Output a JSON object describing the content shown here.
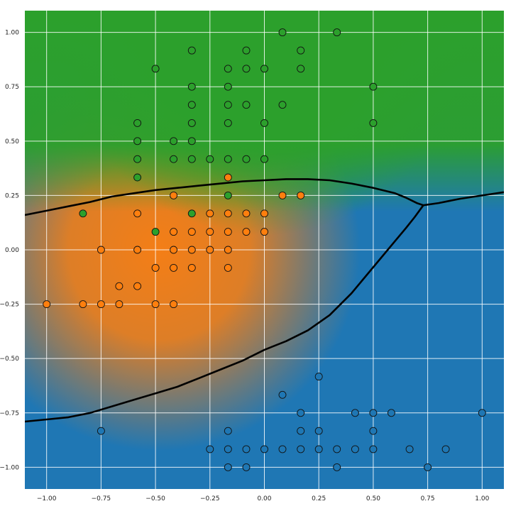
{
  "chart_data": {
    "type": "scatter",
    "title": "",
    "xlabel": "",
    "ylabel": "",
    "xlim": [
      -1.1,
      1.1
    ],
    "ylim": [
      -1.1,
      1.1
    ],
    "grid": true,
    "x_ticks": [
      "−1.00",
      "−0.75",
      "−0.50",
      "−0.25",
      "0.00",
      "0.25",
      "0.50",
      "0.75",
      "1.00"
    ],
    "x_tick_values": [
      -1,
      -0.75,
      -0.5,
      -0.25,
      0,
      0.25,
      0.5,
      0.75,
      1
    ],
    "y_ticks": [
      "1.00",
      "0.75",
      "0.50",
      "0.25",
      "0.00",
      "−0.25",
      "−0.50",
      "−0.75",
      "−1.00"
    ],
    "y_tick_values": [
      1,
      0.75,
      0.5,
      0.25,
      0,
      -0.25,
      -0.5,
      -0.75,
      -1
    ],
    "background": "decision region heatmap (green top, orange left-center, blue bottom-right)",
    "colors": {
      "green": "#2ca02c",
      "orange": "#ff7f0e",
      "blue": "#1f77b4",
      "boundary": "#000000",
      "grid": "#ffffff"
    },
    "series": [
      {
        "color": "#2ca02c",
        "points": [
          [
            0.083,
            1.0
          ],
          [
            0.333,
            1.0
          ],
          [
            -0.333,
            0.917
          ],
          [
            -0.083,
            0.917
          ],
          [
            0.167,
            0.917
          ],
          [
            -0.5,
            0.833
          ],
          [
            -0.167,
            0.833
          ],
          [
            -0.083,
            0.833
          ],
          [
            0.0,
            0.833
          ],
          [
            0.167,
            0.833
          ],
          [
            -0.333,
            0.75
          ],
          [
            -0.167,
            0.75
          ],
          [
            0.5,
            0.75
          ],
          [
            -0.333,
            0.667
          ],
          [
            -0.167,
            0.667
          ],
          [
            -0.083,
            0.667
          ],
          [
            0.083,
            0.667
          ],
          [
            -0.583,
            0.583
          ],
          [
            -0.333,
            0.583
          ],
          [
            -0.167,
            0.583
          ],
          [
            0.0,
            0.583
          ],
          [
            0.5,
            0.583
          ],
          [
            -0.583,
            0.5
          ],
          [
            -0.417,
            0.5
          ],
          [
            -0.333,
            0.5
          ],
          [
            -0.583,
            0.417
          ],
          [
            -0.417,
            0.417
          ],
          [
            -0.333,
            0.417
          ],
          [
            -0.25,
            0.417
          ],
          [
            -0.167,
            0.417
          ],
          [
            -0.083,
            0.417
          ],
          [
            0.0,
            0.417
          ],
          [
            -0.583,
            0.333
          ],
          [
            -0.167,
            0.25
          ],
          [
            -0.833,
            0.167
          ],
          [
            -0.333,
            0.167
          ],
          [
            -0.5,
            0.083
          ]
        ]
      },
      {
        "color": "#ff7f0e",
        "points": [
          [
            -0.167,
            0.333
          ],
          [
            -0.417,
            0.25
          ],
          [
            0.083,
            0.25
          ],
          [
            0.167,
            0.25
          ],
          [
            -0.583,
            0.167
          ],
          [
            -0.25,
            0.167
          ],
          [
            -0.167,
            0.167
          ],
          [
            -0.083,
            0.167
          ],
          [
            0.0,
            0.167
          ],
          [
            -0.417,
            0.083
          ],
          [
            -0.333,
            0.083
          ],
          [
            -0.25,
            0.083
          ],
          [
            -0.167,
            0.083
          ],
          [
            -0.083,
            0.083
          ],
          [
            0.0,
            0.083
          ],
          [
            -0.75,
            0.0
          ],
          [
            -0.583,
            0.0
          ],
          [
            -0.417,
            0.0
          ],
          [
            -0.333,
            0.0
          ],
          [
            -0.25,
            0.0
          ],
          [
            -0.167,
            0.0
          ],
          [
            -0.5,
            -0.083
          ],
          [
            -0.417,
            -0.083
          ],
          [
            -0.333,
            -0.083
          ],
          [
            -0.167,
            -0.083
          ],
          [
            -0.667,
            -0.167
          ],
          [
            -0.583,
            -0.167
          ],
          [
            -1.0,
            -0.25
          ],
          [
            -0.833,
            -0.25
          ],
          [
            -0.75,
            -0.25
          ],
          [
            -0.667,
            -0.25
          ],
          [
            -0.5,
            -0.25
          ],
          [
            -0.417,
            -0.25
          ]
        ]
      },
      {
        "color": "#1f77b4",
        "points": [
          [
            0.25,
            -0.583
          ],
          [
            0.083,
            -0.667
          ],
          [
            0.167,
            -0.75
          ],
          [
            0.417,
            -0.75
          ],
          [
            0.5,
            -0.75
          ],
          [
            0.583,
            -0.75
          ],
          [
            1.0,
            -0.75
          ],
          [
            -0.75,
            -0.833
          ],
          [
            -0.167,
            -0.833
          ],
          [
            0.167,
            -0.833
          ],
          [
            0.25,
            -0.833
          ],
          [
            0.5,
            -0.833
          ],
          [
            -0.25,
            -0.917
          ],
          [
            -0.167,
            -0.917
          ],
          [
            -0.083,
            -0.917
          ],
          [
            0.0,
            -0.917
          ],
          [
            0.083,
            -0.917
          ],
          [
            0.167,
            -0.917
          ],
          [
            0.25,
            -0.917
          ],
          [
            0.333,
            -0.917
          ],
          [
            0.417,
            -0.917
          ],
          [
            0.5,
            -0.917
          ],
          [
            0.667,
            -0.917
          ],
          [
            0.833,
            -0.917
          ],
          [
            -0.167,
            -1.0
          ],
          [
            -0.083,
            -1.0
          ],
          [
            0.333,
            -1.0
          ],
          [
            0.75,
            -1.0
          ]
        ]
      }
    ],
    "boundaries": [
      [
        [
          -1.1,
          0.16
        ],
        [
          -1.0,
          0.18
        ],
        [
          -0.9,
          0.2
        ],
        [
          -0.8,
          0.22
        ],
        [
          -0.7,
          0.245
        ],
        [
          -0.6,
          0.26
        ],
        [
          -0.5,
          0.275
        ],
        [
          -0.4,
          0.285
        ],
        [
          -0.3,
          0.295
        ],
        [
          -0.2,
          0.305
        ],
        [
          -0.1,
          0.315
        ],
        [
          0.0,
          0.32
        ],
        [
          0.1,
          0.325
        ],
        [
          0.2,
          0.325
        ],
        [
          0.3,
          0.32
        ],
        [
          0.4,
          0.305
        ],
        [
          0.5,
          0.285
        ],
        [
          0.6,
          0.26
        ],
        [
          0.65,
          0.24
        ],
        [
          0.7,
          0.215
        ],
        [
          0.73,
          0.205
        ],
        [
          0.8,
          0.215
        ],
        [
          0.9,
          0.235
        ],
        [
          1.0,
          0.25
        ],
        [
          1.1,
          0.265
        ]
      ],
      [
        [
          0.73,
          0.205
        ],
        [
          0.69,
          0.15
        ],
        [
          0.65,
          0.1
        ],
        [
          0.6,
          0.04
        ],
        [
          0.5,
          -0.08
        ],
        [
          0.4,
          -0.2
        ],
        [
          0.3,
          -0.3
        ],
        [
          0.2,
          -0.37
        ],
        [
          0.1,
          -0.42
        ],
        [
          0.0,
          -0.46
        ],
        [
          -0.1,
          -0.51
        ],
        [
          -0.2,
          -0.55
        ],
        [
          -0.3,
          -0.59
        ],
        [
          -0.4,
          -0.63
        ],
        [
          -0.5,
          -0.66
        ],
        [
          -0.6,
          -0.69
        ],
        [
          -0.7,
          -0.72
        ],
        [
          -0.8,
          -0.75
        ],
        [
          -0.9,
          -0.77
        ],
        [
          -1.0,
          -0.78
        ],
        [
          -1.1,
          -0.79
        ]
      ]
    ]
  }
}
